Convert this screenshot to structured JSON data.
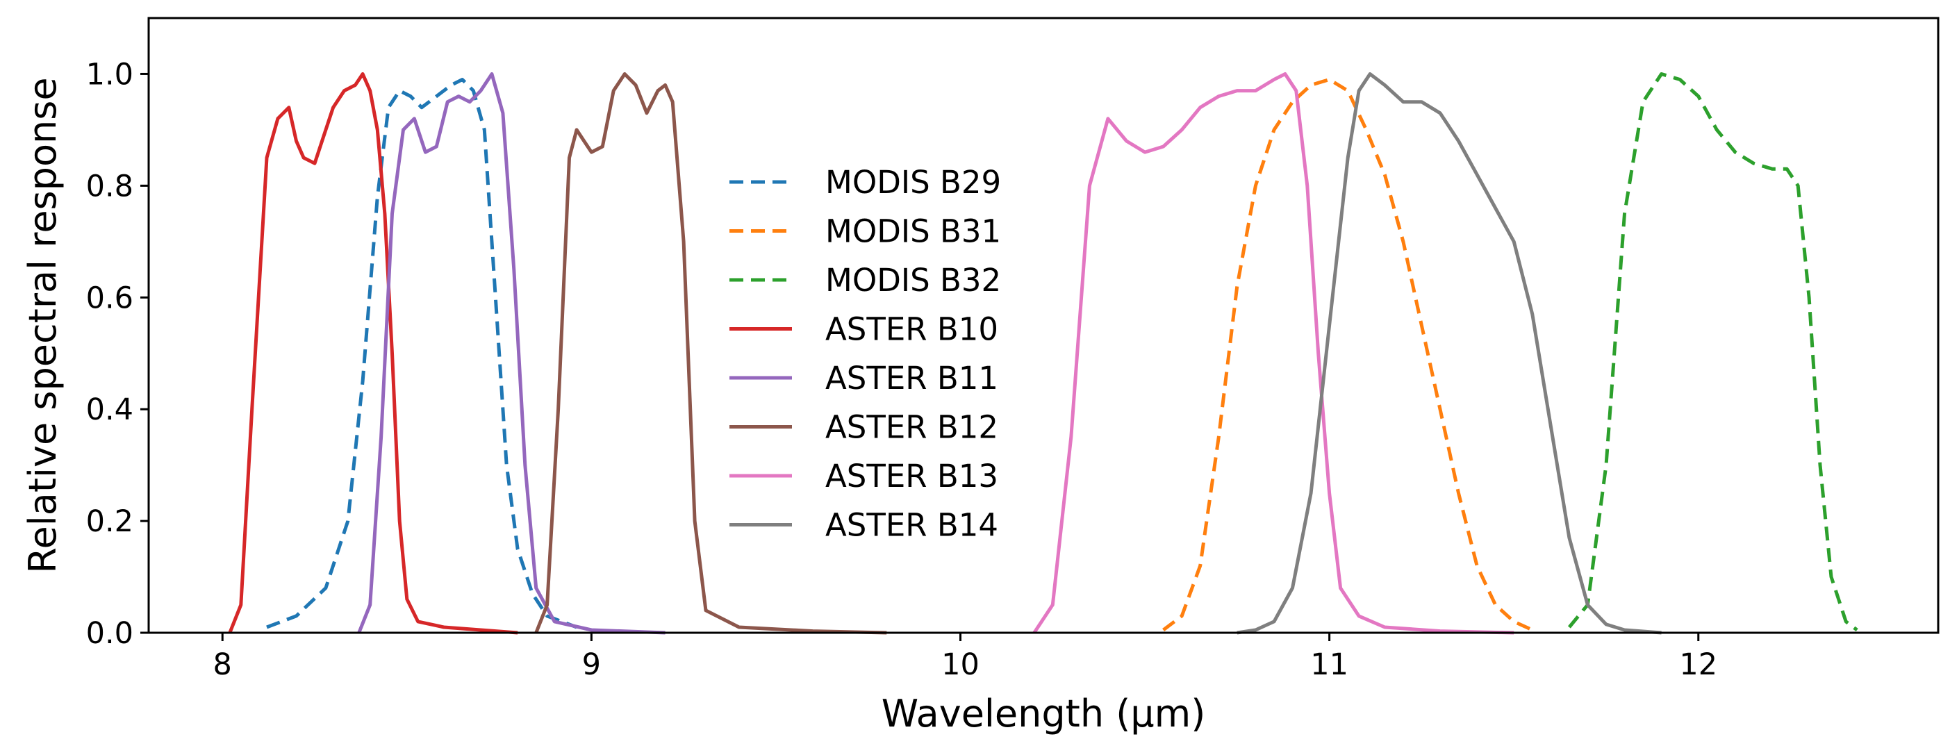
{
  "chart_data": {
    "type": "line",
    "xlabel": "Wavelength (μm)",
    "ylabel": "Relative spectral response",
    "xlim": [
      7.8,
      12.65
    ],
    "ylim": [
      0.0,
      1.1
    ],
    "xticks": [
      8,
      9,
      10,
      11,
      12
    ],
    "yticks": [
      0.0,
      0.2,
      0.4,
      0.6,
      0.8,
      1.0
    ],
    "xtick_labels": [
      "8",
      "9",
      "10",
      "11",
      "12"
    ],
    "ytick_labels": [
      "0.0",
      "0.2",
      "0.4",
      "0.6",
      "0.8",
      "1.0"
    ],
    "grid": false,
    "legend_position": "center",
    "series": [
      {
        "name": "MODIS B29",
        "color": "#1f77b4",
        "style": "dashed",
        "points": [
          [
            8.12,
            0.01
          ],
          [
            8.2,
            0.03
          ],
          [
            8.28,
            0.08
          ],
          [
            8.34,
            0.2
          ],
          [
            8.38,
            0.45
          ],
          [
            8.42,
            0.78
          ],
          [
            8.45,
            0.94
          ],
          [
            8.48,
            0.97
          ],
          [
            8.51,
            0.96
          ],
          [
            8.54,
            0.94
          ],
          [
            8.58,
            0.96
          ],
          [
            8.62,
            0.98
          ],
          [
            8.65,
            0.99
          ],
          [
            8.68,
            0.97
          ],
          [
            8.71,
            0.9
          ],
          [
            8.74,
            0.6
          ],
          [
            8.77,
            0.3
          ],
          [
            8.8,
            0.15
          ],
          [
            8.84,
            0.07
          ],
          [
            8.88,
            0.03
          ],
          [
            8.92,
            0.02
          ],
          [
            8.96,
            0.01
          ]
        ]
      },
      {
        "name": "MODIS B31",
        "color": "#ff7f0e",
        "style": "dashed",
        "points": [
          [
            10.55,
            0.005
          ],
          [
            10.6,
            0.03
          ],
          [
            10.65,
            0.12
          ],
          [
            10.7,
            0.35
          ],
          [
            10.75,
            0.62
          ],
          [
            10.8,
            0.8
          ],
          [
            10.85,
            0.9
          ],
          [
            10.9,
            0.95
          ],
          [
            10.95,
            0.98
          ],
          [
            11.0,
            0.99
          ],
          [
            11.05,
            0.97
          ],
          [
            11.1,
            0.9
          ],
          [
            11.15,
            0.82
          ],
          [
            11.2,
            0.7
          ],
          [
            11.25,
            0.55
          ],
          [
            11.3,
            0.4
          ],
          [
            11.35,
            0.25
          ],
          [
            11.4,
            0.12
          ],
          [
            11.45,
            0.05
          ],
          [
            11.5,
            0.02
          ],
          [
            11.55,
            0.005
          ]
        ]
      },
      {
        "name": "MODIS B32",
        "color": "#2ca02c",
        "style": "dashed",
        "points": [
          [
            11.65,
            0.01
          ],
          [
            11.7,
            0.05
          ],
          [
            11.75,
            0.3
          ],
          [
            11.8,
            0.75
          ],
          [
            11.85,
            0.95
          ],
          [
            11.9,
            1.0
          ],
          [
            11.95,
            0.99
          ],
          [
            12.0,
            0.96
          ],
          [
            12.05,
            0.9
          ],
          [
            12.1,
            0.86
          ],
          [
            12.15,
            0.84
          ],
          [
            12.2,
            0.83
          ],
          [
            12.24,
            0.83
          ],
          [
            12.27,
            0.8
          ],
          [
            12.3,
            0.6
          ],
          [
            12.33,
            0.3
          ],
          [
            12.36,
            0.1
          ],
          [
            12.4,
            0.02
          ],
          [
            12.43,
            0.005
          ]
        ]
      },
      {
        "name": "ASTER B10",
        "color": "#d62728",
        "style": "solid",
        "points": [
          [
            8.02,
            0.0
          ],
          [
            8.05,
            0.05
          ],
          [
            8.08,
            0.4
          ],
          [
            8.12,
            0.85
          ],
          [
            8.15,
            0.92
          ],
          [
            8.18,
            0.94
          ],
          [
            8.2,
            0.88
          ],
          [
            8.22,
            0.85
          ],
          [
            8.25,
            0.84
          ],
          [
            8.27,
            0.88
          ],
          [
            8.3,
            0.94
          ],
          [
            8.33,
            0.97
          ],
          [
            8.36,
            0.98
          ],
          [
            8.38,
            1.0
          ],
          [
            8.4,
            0.97
          ],
          [
            8.42,
            0.9
          ],
          [
            8.44,
            0.75
          ],
          [
            8.46,
            0.5
          ],
          [
            8.48,
            0.2
          ],
          [
            8.5,
            0.06
          ],
          [
            8.53,
            0.02
          ],
          [
            8.6,
            0.01
          ],
          [
            8.7,
            0.005
          ],
          [
            8.8,
            0.0
          ]
        ]
      },
      {
        "name": "ASTER B11",
        "color": "#9467bd",
        "style": "solid",
        "points": [
          [
            8.37,
            0.0
          ],
          [
            8.4,
            0.05
          ],
          [
            8.43,
            0.35
          ],
          [
            8.46,
            0.75
          ],
          [
            8.49,
            0.9
          ],
          [
            8.52,
            0.92
          ],
          [
            8.55,
            0.86
          ],
          [
            8.58,
            0.87
          ],
          [
            8.61,
            0.95
          ],
          [
            8.64,
            0.96
          ],
          [
            8.67,
            0.95
          ],
          [
            8.7,
            0.97
          ],
          [
            8.73,
            1.0
          ],
          [
            8.76,
            0.93
          ],
          [
            8.79,
            0.65
          ],
          [
            8.82,
            0.3
          ],
          [
            8.85,
            0.08
          ],
          [
            8.9,
            0.02
          ],
          [
            9.0,
            0.005
          ],
          [
            9.2,
            0.0
          ]
        ]
      },
      {
        "name": "ASTER B12",
        "color": "#8c564b",
        "style": "solid",
        "points": [
          [
            8.85,
            0.0
          ],
          [
            8.88,
            0.05
          ],
          [
            8.91,
            0.4
          ],
          [
            8.94,
            0.85
          ],
          [
            8.96,
            0.9
          ],
          [
            8.98,
            0.88
          ],
          [
            9.0,
            0.86
          ],
          [
            9.03,
            0.87
          ],
          [
            9.06,
            0.97
          ],
          [
            9.09,
            1.0
          ],
          [
            9.12,
            0.98
          ],
          [
            9.15,
            0.93
          ],
          [
            9.18,
            0.97
          ],
          [
            9.2,
            0.98
          ],
          [
            9.22,
            0.95
          ],
          [
            9.25,
            0.7
          ],
          [
            9.28,
            0.2
          ],
          [
            9.31,
            0.04
          ],
          [
            9.4,
            0.01
          ],
          [
            9.6,
            0.003
          ],
          [
            9.8,
            0.0
          ]
        ]
      },
      {
        "name": "ASTER B13",
        "color": "#e377c2",
        "style": "solid",
        "points": [
          [
            10.2,
            0.0
          ],
          [
            10.25,
            0.05
          ],
          [
            10.3,
            0.35
          ],
          [
            10.35,
            0.8
          ],
          [
            10.4,
            0.92
          ],
          [
            10.45,
            0.88
          ],
          [
            10.5,
            0.86
          ],
          [
            10.55,
            0.87
          ],
          [
            10.6,
            0.9
          ],
          [
            10.65,
            0.94
          ],
          [
            10.7,
            0.96
          ],
          [
            10.75,
            0.97
          ],
          [
            10.8,
            0.97
          ],
          [
            10.85,
            0.99
          ],
          [
            10.88,
            1.0
          ],
          [
            10.91,
            0.97
          ],
          [
            10.94,
            0.8
          ],
          [
            10.97,
            0.5
          ],
          [
            11.0,
            0.25
          ],
          [
            11.03,
            0.08
          ],
          [
            11.08,
            0.03
          ],
          [
            11.15,
            0.01
          ],
          [
            11.3,
            0.003
          ],
          [
            11.5,
            0.0
          ]
        ]
      },
      {
        "name": "ASTER B14",
        "color": "#7f7f7f",
        "style": "solid",
        "points": [
          [
            10.75,
            0.0
          ],
          [
            10.8,
            0.005
          ],
          [
            10.85,
            0.02
          ],
          [
            10.9,
            0.08
          ],
          [
            10.95,
            0.25
          ],
          [
            11.0,
            0.55
          ],
          [
            11.05,
            0.85
          ],
          [
            11.08,
            0.97
          ],
          [
            11.11,
            1.0
          ],
          [
            11.15,
            0.98
          ],
          [
            11.2,
            0.95
          ],
          [
            11.25,
            0.95
          ],
          [
            11.3,
            0.93
          ],
          [
            11.35,
            0.88
          ],
          [
            11.4,
            0.82
          ],
          [
            11.45,
            0.76
          ],
          [
            11.5,
            0.7
          ],
          [
            11.55,
            0.57
          ],
          [
            11.6,
            0.37
          ],
          [
            11.65,
            0.17
          ],
          [
            11.7,
            0.05
          ],
          [
            11.75,
            0.015
          ],
          [
            11.8,
            0.005
          ],
          [
            11.9,
            0.0
          ]
        ]
      }
    ]
  }
}
